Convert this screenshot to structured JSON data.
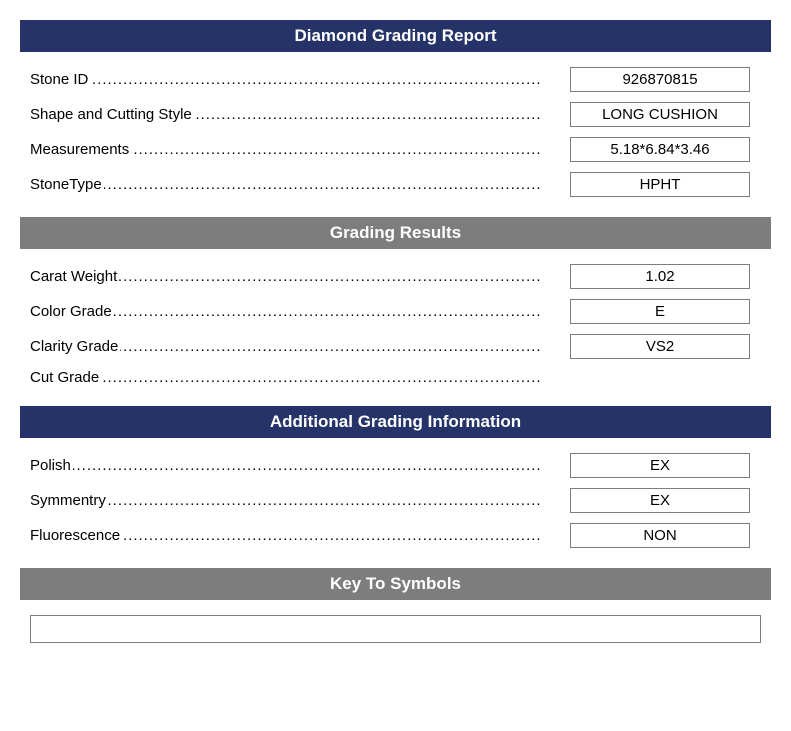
{
  "colors": {
    "navy": "#263369",
    "gray": "#7d7d7d",
    "white": "#ffffff",
    "text": "#000000"
  },
  "sections": {
    "main": {
      "title": "Diamond Grading Report",
      "fields": {
        "stoneId": {
          "label": "Stone ID",
          "value": "926870815"
        },
        "shape": {
          "label": "Shape and Cutting Style",
          "value": "LONG CUSHION"
        },
        "measurements": {
          "label": "Measurements",
          "value": "5.18*6.84*3.46"
        },
        "stoneType": {
          "label": "StoneType",
          "value": "HPHT"
        }
      }
    },
    "grading": {
      "title": "Grading Results",
      "fields": {
        "carat": {
          "label": "Carat Weight",
          "value": "1.02"
        },
        "color": {
          "label": "Color Grade",
          "value": "E"
        },
        "clarity": {
          "label": "Clarity Grade",
          "value": "VS2"
        },
        "cut": {
          "label": "Cut Grade",
          "value": ""
        }
      }
    },
    "additional": {
      "title": "Additional Grading Information",
      "fields": {
        "polish": {
          "label": "Polish",
          "value": "EX"
        },
        "symmetry": {
          "label": "Symmentry",
          "value": "EX"
        },
        "fluorescence": {
          "label": "Fluorescence",
          "value": "NON"
        }
      }
    },
    "symbols": {
      "title": "Key To Symbols"
    }
  }
}
